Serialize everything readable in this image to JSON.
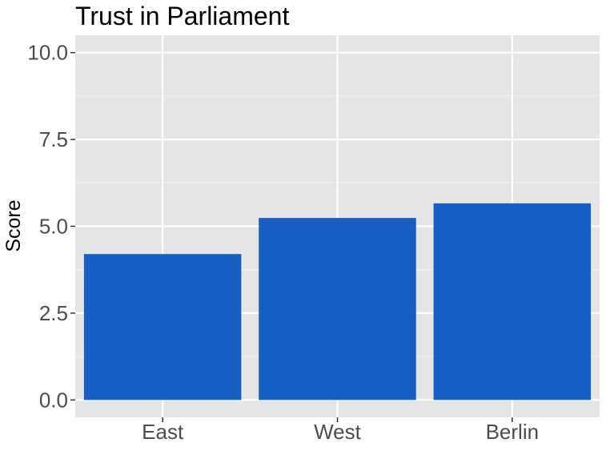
{
  "chart_data": {
    "type": "bar",
    "title": "Trust in Parliament",
    "xlabel": "",
    "ylabel": "Score",
    "categories": [
      "East",
      "West",
      "Berlin"
    ],
    "values": [
      4.2,
      5.24,
      5.66
    ],
    "ylim": [
      -0.5,
      10.5
    ],
    "yticks": [
      0.0,
      2.5,
      5.0,
      7.5,
      10.0
    ],
    "ytick_labels": [
      "0.0",
      "2.5",
      "5.0",
      "7.5",
      "10.0"
    ],
    "grid": true,
    "legend": "none",
    "colors": {
      "bar": "#175FC4",
      "panel_background": "#E5E5E5",
      "grid_major": "#FFFFFF",
      "grid_minor": "#F2F2F2",
      "axis_text": "#4D4D4D",
      "title_text": "#000000"
    }
  }
}
